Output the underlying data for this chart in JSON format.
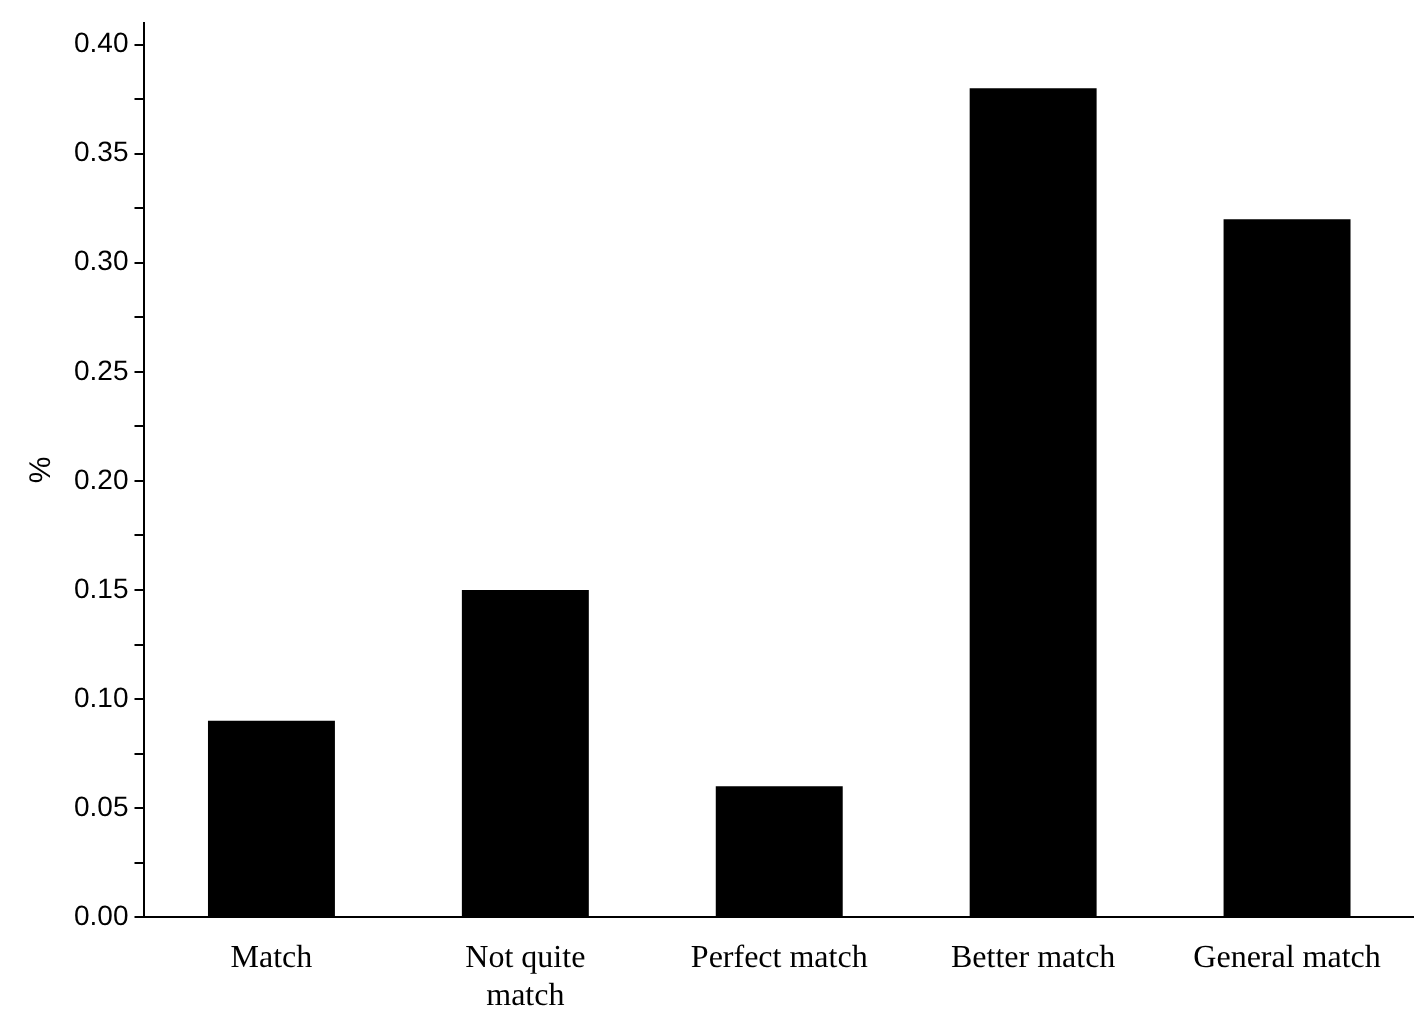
{
  "chart_data": {
    "type": "bar",
    "ylabel": "%",
    "categories": [
      "Match",
      "Not quite match",
      "Perfect match",
      "Better match",
      "General match"
    ],
    "values": [
      0.09,
      0.15,
      0.06,
      0.38,
      0.32
    ],
    "color": "#000000",
    "ylim": [
      0,
      0.41
    ],
    "yticks": [
      {
        "value": 0,
        "label": "0.00"
      },
      {
        "value": 0.025,
        "label": null
      },
      {
        "value": 0.05,
        "label": "0.05"
      },
      {
        "value": 0.075,
        "label": null
      },
      {
        "value": 0.1,
        "label": "0.10"
      },
      {
        "value": 0.125,
        "label": null
      },
      {
        "value": 0.15,
        "label": "0.15"
      },
      {
        "value": 0.175,
        "label": null
      },
      {
        "value": 0.2,
        "label": "0.20"
      },
      {
        "value": 0.225,
        "label": null
      },
      {
        "value": 0.25,
        "label": "0.25"
      },
      {
        "value": 0.275,
        "label": null
      },
      {
        "value": 0.3,
        "label": "0.30"
      },
      {
        "value": 0.325,
        "label": null
      },
      {
        "value": 0.35,
        "label": "0.35"
      },
      {
        "value": 0.375,
        "label": null
      },
      {
        "value": 0.4,
        "label": "0.40"
      }
    ],
    "grid": false,
    "legend": false
  }
}
